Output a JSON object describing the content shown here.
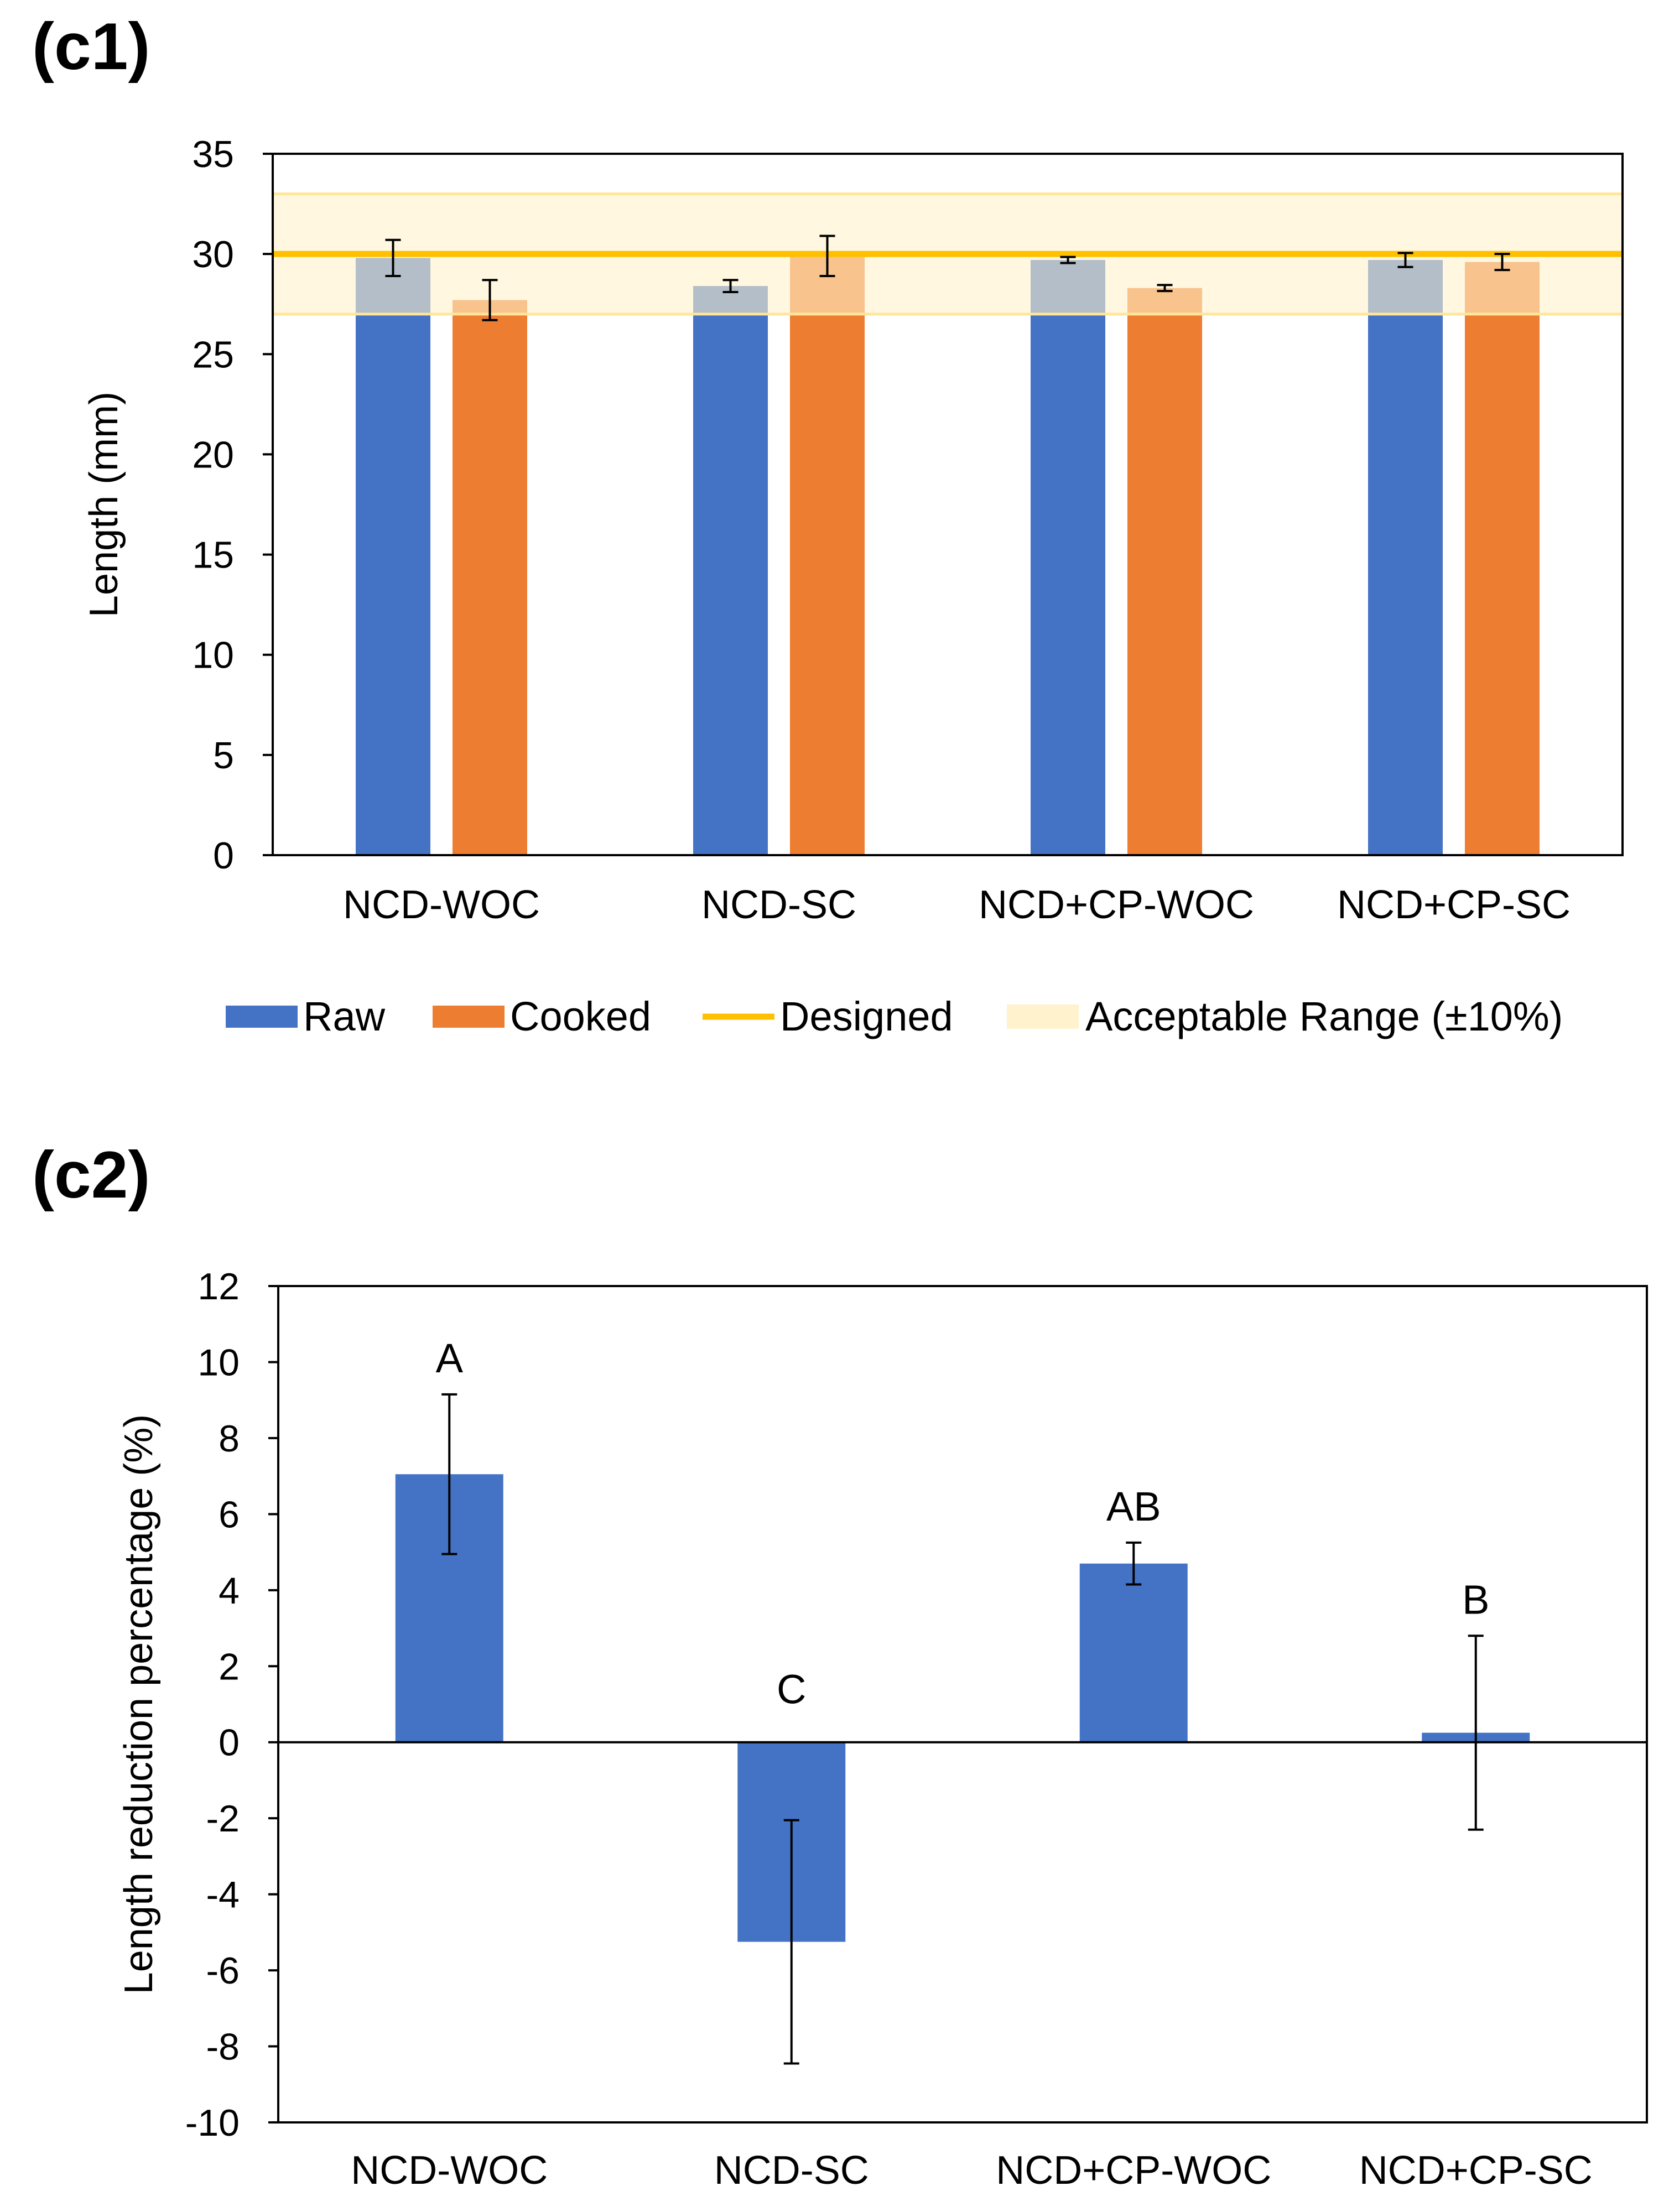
{
  "figure": {
    "panel_c1_label": "(c1)",
    "panel_c2_label": "(c2)"
  },
  "colors": {
    "raw": "#4472C4",
    "cooked": "#ED7D31",
    "designed": "#FFC000",
    "acceptable_range": "#FFF2CC",
    "error_bar": "#000000"
  },
  "chart_data": [
    {
      "id": "c1",
      "type": "bar",
      "title": "",
      "xlabel": "",
      "ylabel": "Length (mm)",
      "ylim": [
        0,
        35
      ],
      "yticks": [
        0,
        5,
        10,
        15,
        20,
        25,
        30,
        35
      ],
      "ytick_labels": [
        "0",
        "5",
        "10",
        "15",
        "20",
        "25",
        "30",
        "35"
      ],
      "categories": [
        "NCD-WOC",
        "NCD-SC",
        "NCD+CP-WOC",
        "NCD+CP-SC"
      ],
      "series": [
        {
          "name": "Raw",
          "color": "#4472C4",
          "values": [
            29.8,
            28.4,
            29.7,
            29.7
          ],
          "errors": [
            0.9,
            0.3,
            0.15,
            0.35
          ]
        },
        {
          "name": "Cooked",
          "color": "#ED7D31",
          "values": [
            27.7,
            29.9,
            28.3,
            29.6
          ],
          "errors": [
            1.0,
            1.0,
            0.15,
            0.4
          ]
        }
      ],
      "reference_line": {
        "name": "Designed",
        "value": 30,
        "color": "#FFC000"
      },
      "reference_band": {
        "name": "Acceptable Range (±10%)",
        "min": 27,
        "max": 33,
        "color": "#FFF2CC"
      },
      "legend": {
        "position": "bottom",
        "entries": [
          "Raw",
          "Cooked",
          "Designed",
          "Acceptable Range (±10%)"
        ]
      },
      "grid": false
    },
    {
      "id": "c2",
      "type": "bar",
      "title": "",
      "xlabel": "",
      "ylabel": "Length reduction percentage (%)",
      "ylim": [
        -10,
        12
      ],
      "yticks": [
        -10,
        -8,
        -6,
        -4,
        -2,
        0,
        2,
        4,
        6,
        8,
        10,
        12
      ],
      "ytick_labels": [
        "-10",
        "-8",
        "-6",
        "-4",
        "-2",
        "0",
        "2",
        "4",
        "6",
        "8",
        "10",
        "12"
      ],
      "categories": [
        "NCD-WOC",
        "NCD-SC",
        "NCD+CP-WOC",
        "NCD+CP-SC"
      ],
      "series": [
        {
          "name": "Length reduction",
          "color": "#4472C4",
          "values": [
            7.05,
            -5.25,
            4.7,
            0.25
          ],
          "errors": [
            2.1,
            3.2,
            0.55,
            2.55
          ]
        }
      ],
      "annotations": [
        "A",
        "C",
        "AB",
        "B"
      ],
      "grid": false
    }
  ]
}
